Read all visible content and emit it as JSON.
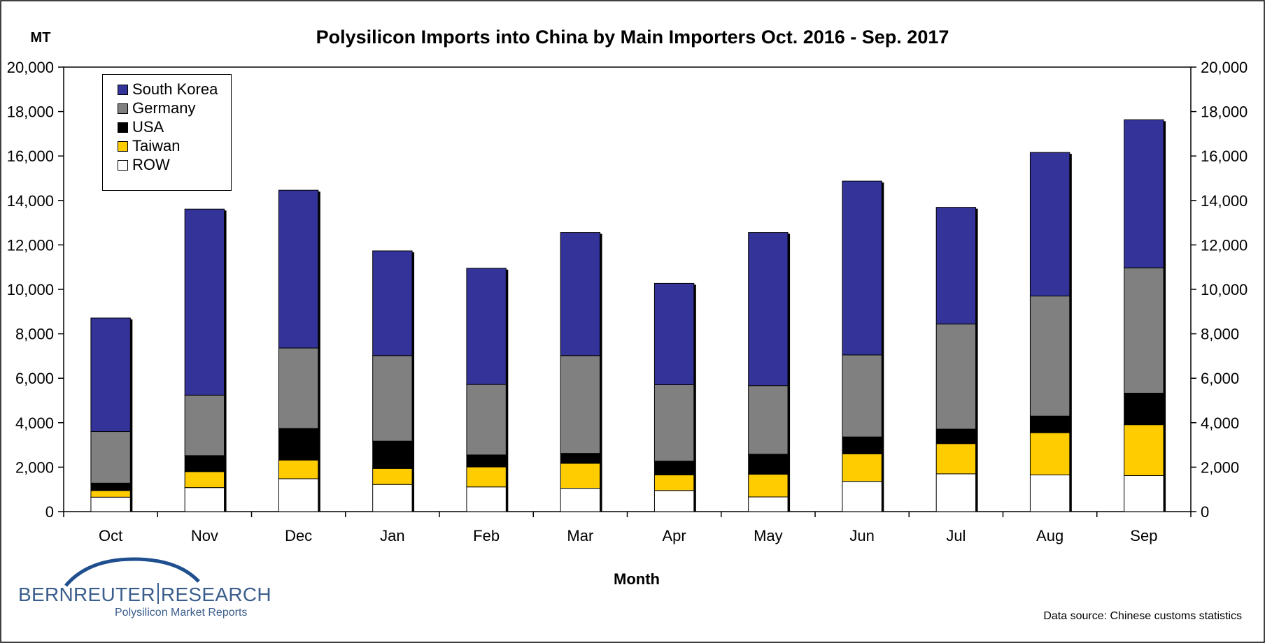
{
  "chart_data": {
    "type": "bar",
    "stacked": true,
    "title": "Polysilicon Imports into China by Main Importers Oct. 2016 - Sep. 2017",
    "ylabel": "MT",
    "xlabel": "Month",
    "ylim": [
      0,
      20000
    ],
    "yticks": [
      "0",
      "2,000",
      "4,000",
      "6,000",
      "8,000",
      "10,000",
      "12,000",
      "14,000",
      "16,000",
      "18,000",
      "20,000"
    ],
    "categories": [
      "Oct",
      "Nov",
      "Dec",
      "Jan",
      "Feb",
      "Mar",
      "Apr",
      "May",
      "Jun",
      "Jul",
      "Aug",
      "Sep"
    ],
    "series": [
      {
        "name": "ROW",
        "color": "#ffffff",
        "values": [
          650,
          1080,
          1480,
          1220,
          1110,
          1050,
          950,
          660,
          1360,
          1700,
          1650,
          1620
        ]
      },
      {
        "name": "Taiwan",
        "color": "#ffcc00",
        "values": [
          300,
          720,
          840,
          720,
          900,
          1120,
          700,
          1020,
          1240,
          1360,
          1900,
          2290
        ]
      },
      {
        "name": "USA",
        "color": "#000000",
        "values": [
          330,
          720,
          1420,
          1230,
          540,
          450,
          620,
          900,
          760,
          650,
          750,
          1420
        ]
      },
      {
        "name": "Germany",
        "color": "#808080",
        "values": [
          2320,
          2720,
          3620,
          3850,
          3170,
          4400,
          3440,
          3090,
          3690,
          4730,
          5400,
          5640
        ]
      },
      {
        "name": "South Korea",
        "color": "#333399",
        "values": [
          5110,
          8370,
          7100,
          4710,
          5230,
          5540,
          4560,
          6890,
          7820,
          5250,
          6460,
          6660
        ]
      }
    ],
    "legend_order": [
      "South Korea",
      "Germany",
      "USA",
      "Taiwan",
      "ROW"
    ],
    "legend_position": "top-left",
    "grid": false,
    "secondary_y_axis": true
  },
  "logo": {
    "name_part1": "BERNREUTER",
    "name_part2": "RESEARCH",
    "subtitle": "Polysilicon Market Reports"
  },
  "source_note": "Data source: Chinese customs statistics"
}
